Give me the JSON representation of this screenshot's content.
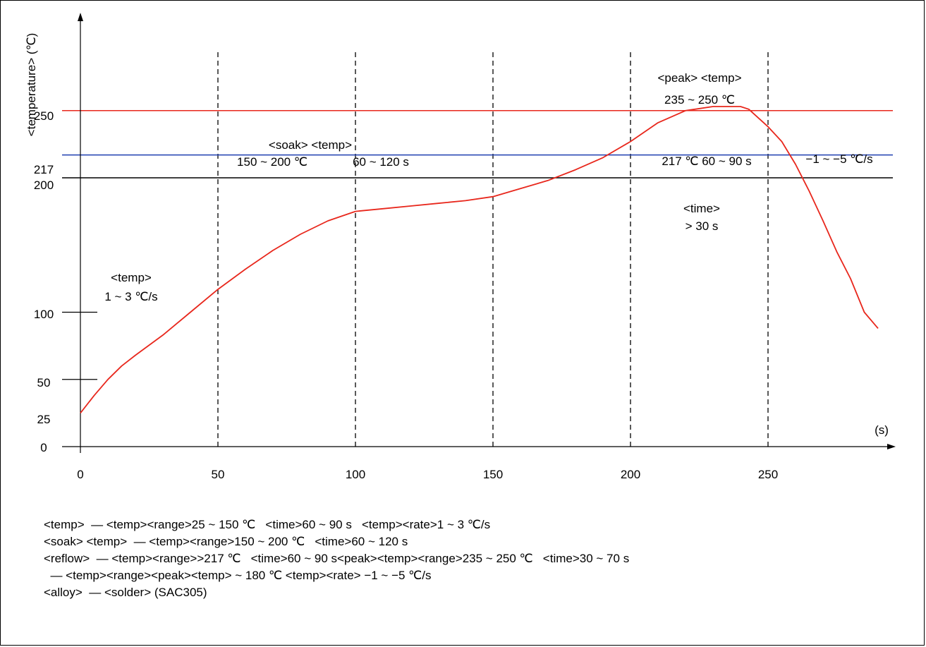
{
  "chart_data": {
    "type": "line",
    "x_unit_label": "(s)",
    "y_axis_label": "<temperature> (℃)",
    "xlim": [
      0,
      290
    ],
    "ylim": [
      0,
      270
    ],
    "x_ticks": [
      0,
      50,
      100,
      150,
      200,
      250
    ],
    "y_ticks": [
      0,
      25,
      50,
      100,
      200,
      217,
      250
    ],
    "phase_boundaries": [
      50,
      100,
      150,
      200,
      250
    ],
    "reference_lines": [
      {
        "value": 250,
        "color": "#e8271c"
      },
      {
        "value": 217,
        "color": "#1f3fb0"
      },
      {
        "value": 200,
        "color": "#000000"
      }
    ],
    "series": [
      {
        "color": "#e8271c",
        "points": [
          [
            0,
            25
          ],
          [
            5,
            38
          ],
          [
            10,
            50
          ],
          [
            15,
            60
          ],
          [
            20,
            68
          ],
          [
            30,
            83
          ],
          [
            40,
            100
          ],
          [
            50,
            117
          ],
          [
            60,
            132
          ],
          [
            70,
            146
          ],
          [
            80,
            158
          ],
          [
            90,
            168
          ],
          [
            100,
            175
          ],
          [
            110,
            177
          ],
          [
            120,
            179
          ],
          [
            130,
            181
          ],
          [
            140,
            183
          ],
          [
            150,
            186
          ],
          [
            160,
            192
          ],
          [
            170,
            198
          ],
          [
            180,
            206
          ],
          [
            190,
            215
          ],
          [
            200,
            227
          ],
          [
            210,
            241
          ],
          [
            220,
            250
          ],
          [
            230,
            253
          ],
          [
            240,
            253
          ],
          [
            243,
            251
          ],
          [
            250,
            238
          ],
          [
            255,
            227
          ],
          [
            260,
            210
          ],
          [
            265,
            190
          ],
          [
            270,
            168
          ],
          [
            275,
            145
          ],
          [
            280,
            125
          ],
          [
            285,
            100
          ],
          [
            290,
            88
          ]
        ]
      }
    ],
    "annotations": [
      {
        "id": "peak",
        "lines": [
          "<peak> <temp>",
          "235 ~ 250 ℃"
        ]
      },
      {
        "id": "soak",
        "lines": [
          "<soak> <temp>",
          "150 ~ 200 ℃",
          "60 ~ 120 s"
        ]
      },
      {
        "id": "above-liquidus",
        "text": "217 ℃  60 ~ 90 s"
      },
      {
        "id": "cooling-rate",
        "text": "−1 ~ −5 ℃/s"
      },
      {
        "id": "time-above",
        "lines": [
          "<time>",
          "> 30 s"
        ]
      },
      {
        "id": "ramp-rate",
        "lines": [
          "<temp>",
          "1 ~ 3 ℃/s"
        ]
      }
    ]
  },
  "notes": [
    "<temp>  — <temp><range>25 ~ 150 ℃   <time>60 ~ 90 s   <temp><rate>1 ~ 3 ℃/s",
    "<soak> <temp>  — <temp><range>150 ~ 200 ℃   <time>60 ~ 120 s",
    "<reflow>  — <temp><range>>217 ℃   <time>60 ~ 90 s<peak><temp><range>235 ~ 250 ℃   <time>30 ~ 70 s",
    "  — <temp><range><peak><temp> ~ 180 ℃ <temp><rate> −1 ~ −5 ℃/s",
    "<alloy>  — <solder> (SAC305)"
  ]
}
